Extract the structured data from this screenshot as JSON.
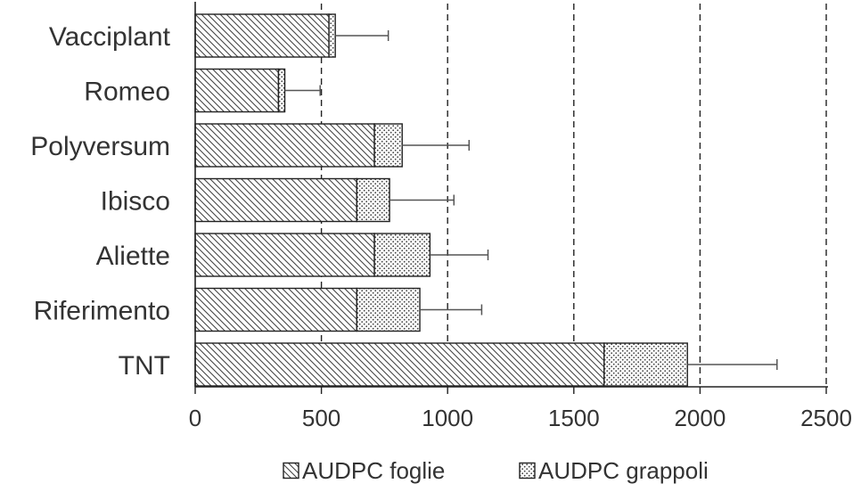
{
  "chart_data": {
    "type": "bar",
    "orientation": "horizontal",
    "stacked": true,
    "categories": [
      "Vacciplant",
      "Romeo",
      "Polyversum",
      "Ibisco",
      "Aliette",
      "Riferimento",
      "TNT"
    ],
    "series": [
      {
        "name": "AUDPC foglie",
        "values": [
          530,
          330,
          710,
          640,
          710,
          640,
          1620
        ]
      },
      {
        "name": "AUDPC grappoli",
        "values": [
          25,
          25,
          110,
          130,
          220,
          250,
          330
        ]
      }
    ],
    "error_upper": [
      765,
      495,
      1085,
      1025,
      1160,
      1135,
      2305
    ],
    "xlim": [
      0,
      2500
    ],
    "xticks": [
      "0",
      "500",
      "1000",
      "1500",
      "2000",
      "2500"
    ],
    "xtick_values": [
      0,
      500,
      1000,
      1500,
      2000,
      2500
    ],
    "gridlines": "dashed vertical",
    "legend_position": "bottom",
    "title": "",
    "xlabel": "",
    "ylabel": ""
  }
}
